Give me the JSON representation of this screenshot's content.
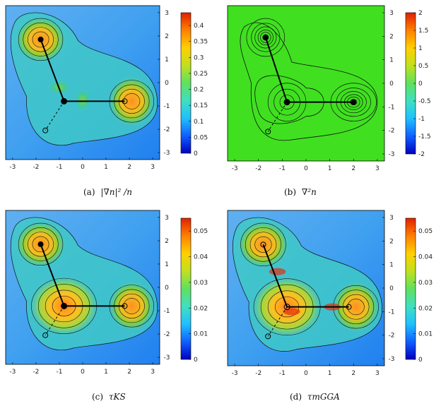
{
  "figure": {
    "panels": [
      {
        "id": "a",
        "caption_label": "(a)",
        "caption_math": "|∇n|² /n"
      },
      {
        "id": "b",
        "caption_label": "(b)",
        "caption_math": "∇²n"
      },
      {
        "id": "c",
        "caption_label": "(c)",
        "caption_math": "τKS"
      },
      {
        "id": "d",
        "caption_label": "(d)",
        "caption_math": "τmGGA"
      }
    ]
  },
  "chart_data": [
    {
      "type": "heatmap",
      "panel": "a",
      "title": "",
      "xlabel": "",
      "ylabel": "",
      "xlim": [
        -3.3,
        3.3
      ],
      "ylim": [
        -3.3,
        3.3
      ],
      "x_ticks": [
        -3,
        -2,
        -1,
        0,
        1,
        2,
        3
      ],
      "y_ticks": [
        -3,
        -2,
        -1,
        0,
        1,
        2,
        3
      ],
      "colorbar": {
        "min": 0,
        "max": 0.44,
        "ticks": [
          0,
          0.05,
          0.1,
          0.15,
          0.2,
          0.25,
          0.3,
          0.35,
          0.4
        ],
        "colormap": "jet"
      },
      "contours": true,
      "atoms": [
        {
          "x": -0.8,
          "y": -0.8,
          "role": "center",
          "filled": true
        },
        {
          "x": -1.8,
          "y": 1.85,
          "role": "ligand",
          "filled": true
        },
        {
          "x": 1.8,
          "y": -0.8,
          "role": "ligand",
          "filled": false
        },
        {
          "x": -1.6,
          "y": -2.05,
          "role": "ligand",
          "filled": false
        }
      ],
      "bonds": [
        {
          "from": [
            -0.8,
            -0.8
          ],
          "to": [
            -1.8,
            1.85
          ],
          "style": "solid"
        },
        {
          "from": [
            -0.8,
            -0.8
          ],
          "to": [
            1.8,
            -0.8
          ],
          "style": "solid"
        },
        {
          "from": [
            -0.8,
            -0.8
          ],
          "to": [
            -1.6,
            -2.05
          ],
          "style": "dashed"
        }
      ]
    },
    {
      "type": "heatmap",
      "panel": "b",
      "title": "",
      "xlabel": "",
      "ylabel": "",
      "xlim": [
        -3.3,
        3.3
      ],
      "ylim": [
        -3.3,
        3.3
      ],
      "x_ticks": [
        -3,
        -2,
        -1,
        0,
        1,
        2,
        3
      ],
      "y_ticks": [
        -3,
        -2,
        -1,
        0,
        1,
        2,
        3
      ],
      "colorbar": {
        "min": -2,
        "max": 2,
        "ticks": [
          -2,
          -1.5,
          -1,
          -0.5,
          0,
          0.5,
          1,
          1.5,
          2
        ],
        "colormap": "jet"
      },
      "contours": true,
      "atoms": [
        {
          "x": -0.8,
          "y": -0.8,
          "role": "center",
          "filled": true
        },
        {
          "x": -1.7,
          "y": 1.95,
          "role": "ligand",
          "filled": true
        },
        {
          "x": 2.0,
          "y": -0.8,
          "role": "ligand",
          "filled": true
        },
        {
          "x": -1.6,
          "y": -2.05,
          "role": "ligand",
          "filled": false
        }
      ],
      "bonds": [
        {
          "from": [
            -0.8,
            -0.8
          ],
          "to": [
            -1.7,
            1.95
          ],
          "style": "solid"
        },
        {
          "from": [
            -0.8,
            -0.8
          ],
          "to": [
            2.0,
            -0.8
          ],
          "style": "solid"
        },
        {
          "from": [
            -0.8,
            -0.8
          ],
          "to": [
            -1.6,
            -2.05
          ],
          "style": "dashed"
        }
      ]
    },
    {
      "type": "heatmap",
      "panel": "c",
      "title": "",
      "xlabel": "",
      "ylabel": "",
      "xlim": [
        -3.3,
        3.3
      ],
      "ylim": [
        -3.3,
        3.3
      ],
      "x_ticks": [
        -3,
        -2,
        -1,
        0,
        1,
        2,
        3
      ],
      "y_ticks": [
        -3,
        -2,
        -1,
        0,
        1,
        2,
        3
      ],
      "colorbar": {
        "min": 0,
        "max": 0.055,
        "ticks": [
          0,
          0.01,
          0.02,
          0.03,
          0.04,
          0.05
        ],
        "colormap": "jet"
      },
      "contours": true,
      "atoms": [
        {
          "x": -0.8,
          "y": -0.8,
          "role": "center",
          "filled": true
        },
        {
          "x": -1.8,
          "y": 1.85,
          "role": "ligand",
          "filled": true
        },
        {
          "x": 1.8,
          "y": -0.8,
          "role": "ligand",
          "filled": false
        },
        {
          "x": -1.6,
          "y": -2.05,
          "role": "ligand",
          "filled": false
        }
      ],
      "bonds": [
        {
          "from": [
            -0.8,
            -0.8
          ],
          "to": [
            -1.8,
            1.85
          ],
          "style": "solid"
        },
        {
          "from": [
            -0.8,
            -0.8
          ],
          "to": [
            1.8,
            -0.8
          ],
          "style": "solid"
        },
        {
          "from": [
            -0.8,
            -0.8
          ],
          "to": [
            -1.6,
            -2.05
          ],
          "style": "dashed"
        }
      ]
    },
    {
      "type": "heatmap",
      "panel": "d",
      "title": "",
      "xlabel": "",
      "ylabel": "",
      "xlim": [
        -3.3,
        3.3
      ],
      "ylim": [
        -3.3,
        3.3
      ],
      "x_ticks": [
        -3,
        -2,
        -1,
        0,
        1,
        2,
        3
      ],
      "y_ticks": [
        -3,
        -2,
        -1,
        0,
        1,
        2,
        3
      ],
      "colorbar": {
        "min": 0,
        "max": 0.055,
        "ticks": [
          0,
          0.01,
          0.02,
          0.03,
          0.04,
          0.05
        ],
        "colormap": "jet"
      },
      "contours": true,
      "atoms": [
        {
          "x": -0.8,
          "y": -0.8,
          "role": "center",
          "filled": false
        },
        {
          "x": -1.8,
          "y": 1.85,
          "role": "ligand",
          "filled": false
        },
        {
          "x": 1.8,
          "y": -0.8,
          "role": "ligand",
          "filled": false
        },
        {
          "x": -1.6,
          "y": -2.05,
          "role": "ligand",
          "filled": false
        }
      ],
      "bonds": [
        {
          "from": [
            -0.8,
            -0.8
          ],
          "to": [
            -1.8,
            1.85
          ],
          "style": "solid"
        },
        {
          "from": [
            -0.8,
            -0.8
          ],
          "to": [
            1.8,
            -0.8
          ],
          "style": "solid"
        },
        {
          "from": [
            -0.8,
            -0.8
          ],
          "to": [
            -1.6,
            -2.05
          ],
          "style": "dashed"
        }
      ]
    }
  ]
}
